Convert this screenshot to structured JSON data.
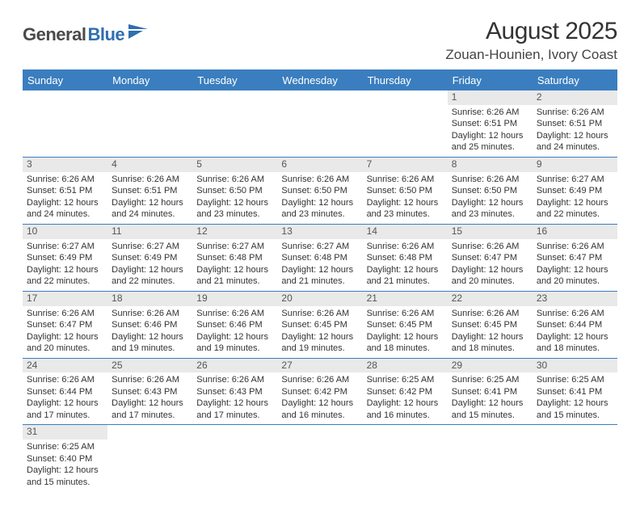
{
  "logo": {
    "text1": "General",
    "text2": "Blue"
  },
  "title": "August 2025",
  "location": "Zouan-Hounien, Ivory Coast",
  "colors": {
    "header_bg": "#3a7ebf",
    "header_text": "#ffffff",
    "daynum_bg": "#e9e9e9",
    "border": "#3a7ebf",
    "logo_dark": "#4a4a4a",
    "logo_blue": "#2f6fb0"
  },
  "day_names": [
    "Sunday",
    "Monday",
    "Tuesday",
    "Wednesday",
    "Thursday",
    "Friday",
    "Saturday"
  ],
  "weeks": [
    [
      {
        "n": "",
        "sr": "",
        "ss": "",
        "dl": ""
      },
      {
        "n": "",
        "sr": "",
        "ss": "",
        "dl": ""
      },
      {
        "n": "",
        "sr": "",
        "ss": "",
        "dl": ""
      },
      {
        "n": "",
        "sr": "",
        "ss": "",
        "dl": ""
      },
      {
        "n": "",
        "sr": "",
        "ss": "",
        "dl": ""
      },
      {
        "n": "1",
        "sr": "Sunrise: 6:26 AM",
        "ss": "Sunset: 6:51 PM",
        "dl": "Daylight: 12 hours and 25 minutes."
      },
      {
        "n": "2",
        "sr": "Sunrise: 6:26 AM",
        "ss": "Sunset: 6:51 PM",
        "dl": "Daylight: 12 hours and 24 minutes."
      }
    ],
    [
      {
        "n": "3",
        "sr": "Sunrise: 6:26 AM",
        "ss": "Sunset: 6:51 PM",
        "dl": "Daylight: 12 hours and 24 minutes."
      },
      {
        "n": "4",
        "sr": "Sunrise: 6:26 AM",
        "ss": "Sunset: 6:51 PM",
        "dl": "Daylight: 12 hours and 24 minutes."
      },
      {
        "n": "5",
        "sr": "Sunrise: 6:26 AM",
        "ss": "Sunset: 6:50 PM",
        "dl": "Daylight: 12 hours and 23 minutes."
      },
      {
        "n": "6",
        "sr": "Sunrise: 6:26 AM",
        "ss": "Sunset: 6:50 PM",
        "dl": "Daylight: 12 hours and 23 minutes."
      },
      {
        "n": "7",
        "sr": "Sunrise: 6:26 AM",
        "ss": "Sunset: 6:50 PM",
        "dl": "Daylight: 12 hours and 23 minutes."
      },
      {
        "n": "8",
        "sr": "Sunrise: 6:26 AM",
        "ss": "Sunset: 6:50 PM",
        "dl": "Daylight: 12 hours and 23 minutes."
      },
      {
        "n": "9",
        "sr": "Sunrise: 6:27 AM",
        "ss": "Sunset: 6:49 PM",
        "dl": "Daylight: 12 hours and 22 minutes."
      }
    ],
    [
      {
        "n": "10",
        "sr": "Sunrise: 6:27 AM",
        "ss": "Sunset: 6:49 PM",
        "dl": "Daylight: 12 hours and 22 minutes."
      },
      {
        "n": "11",
        "sr": "Sunrise: 6:27 AM",
        "ss": "Sunset: 6:49 PM",
        "dl": "Daylight: 12 hours and 22 minutes."
      },
      {
        "n": "12",
        "sr": "Sunrise: 6:27 AM",
        "ss": "Sunset: 6:48 PM",
        "dl": "Daylight: 12 hours and 21 minutes."
      },
      {
        "n": "13",
        "sr": "Sunrise: 6:27 AM",
        "ss": "Sunset: 6:48 PM",
        "dl": "Daylight: 12 hours and 21 minutes."
      },
      {
        "n": "14",
        "sr": "Sunrise: 6:26 AM",
        "ss": "Sunset: 6:48 PM",
        "dl": "Daylight: 12 hours and 21 minutes."
      },
      {
        "n": "15",
        "sr": "Sunrise: 6:26 AM",
        "ss": "Sunset: 6:47 PM",
        "dl": "Daylight: 12 hours and 20 minutes."
      },
      {
        "n": "16",
        "sr": "Sunrise: 6:26 AM",
        "ss": "Sunset: 6:47 PM",
        "dl": "Daylight: 12 hours and 20 minutes."
      }
    ],
    [
      {
        "n": "17",
        "sr": "Sunrise: 6:26 AM",
        "ss": "Sunset: 6:47 PM",
        "dl": "Daylight: 12 hours and 20 minutes."
      },
      {
        "n": "18",
        "sr": "Sunrise: 6:26 AM",
        "ss": "Sunset: 6:46 PM",
        "dl": "Daylight: 12 hours and 19 minutes."
      },
      {
        "n": "19",
        "sr": "Sunrise: 6:26 AM",
        "ss": "Sunset: 6:46 PM",
        "dl": "Daylight: 12 hours and 19 minutes."
      },
      {
        "n": "20",
        "sr": "Sunrise: 6:26 AM",
        "ss": "Sunset: 6:45 PM",
        "dl": "Daylight: 12 hours and 19 minutes."
      },
      {
        "n": "21",
        "sr": "Sunrise: 6:26 AM",
        "ss": "Sunset: 6:45 PM",
        "dl": "Daylight: 12 hours and 18 minutes."
      },
      {
        "n": "22",
        "sr": "Sunrise: 6:26 AM",
        "ss": "Sunset: 6:45 PM",
        "dl": "Daylight: 12 hours and 18 minutes."
      },
      {
        "n": "23",
        "sr": "Sunrise: 6:26 AM",
        "ss": "Sunset: 6:44 PM",
        "dl": "Daylight: 12 hours and 18 minutes."
      }
    ],
    [
      {
        "n": "24",
        "sr": "Sunrise: 6:26 AM",
        "ss": "Sunset: 6:44 PM",
        "dl": "Daylight: 12 hours and 17 minutes."
      },
      {
        "n": "25",
        "sr": "Sunrise: 6:26 AM",
        "ss": "Sunset: 6:43 PM",
        "dl": "Daylight: 12 hours and 17 minutes."
      },
      {
        "n": "26",
        "sr": "Sunrise: 6:26 AM",
        "ss": "Sunset: 6:43 PM",
        "dl": "Daylight: 12 hours and 17 minutes."
      },
      {
        "n": "27",
        "sr": "Sunrise: 6:26 AM",
        "ss": "Sunset: 6:42 PM",
        "dl": "Daylight: 12 hours and 16 minutes."
      },
      {
        "n": "28",
        "sr": "Sunrise: 6:25 AM",
        "ss": "Sunset: 6:42 PM",
        "dl": "Daylight: 12 hours and 16 minutes."
      },
      {
        "n": "29",
        "sr": "Sunrise: 6:25 AM",
        "ss": "Sunset: 6:41 PM",
        "dl": "Daylight: 12 hours and 15 minutes."
      },
      {
        "n": "30",
        "sr": "Sunrise: 6:25 AM",
        "ss": "Sunset: 6:41 PM",
        "dl": "Daylight: 12 hours and 15 minutes."
      }
    ],
    [
      {
        "n": "31",
        "sr": "Sunrise: 6:25 AM",
        "ss": "Sunset: 6:40 PM",
        "dl": "Daylight: 12 hours and 15 minutes."
      },
      {
        "n": "",
        "sr": "",
        "ss": "",
        "dl": ""
      },
      {
        "n": "",
        "sr": "",
        "ss": "",
        "dl": ""
      },
      {
        "n": "",
        "sr": "",
        "ss": "",
        "dl": ""
      },
      {
        "n": "",
        "sr": "",
        "ss": "",
        "dl": ""
      },
      {
        "n": "",
        "sr": "",
        "ss": "",
        "dl": ""
      },
      {
        "n": "",
        "sr": "",
        "ss": "",
        "dl": ""
      }
    ]
  ]
}
